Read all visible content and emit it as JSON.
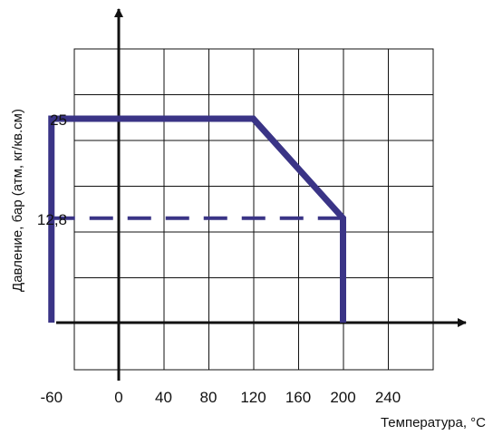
{
  "chart_data": {
    "type": "line",
    "xlabel": "Температура, °C",
    "ylabel": "Давление, бар (атм, кг/кв.см)",
    "x_ticks": [
      -60,
      0,
      40,
      80,
      120,
      160,
      200,
      240
    ],
    "x_tick_labels": [
      "-60",
      "0",
      "40",
      "80",
      "120",
      "160",
      "200",
      "240"
    ],
    "y_ticks": [
      25,
      12.8
    ],
    "y_tick_labels": [
      "25",
      "12,8"
    ],
    "xlim": [
      -100,
      320
    ],
    "ylim": [
      -5,
      33
    ],
    "grid": true,
    "series": [
      {
        "style": "solid",
        "color": "#3a3486",
        "points": [
          [
            -60,
            0
          ],
          [
            -60,
            25
          ],
          [
            120,
            25
          ],
          [
            200,
            12.8
          ],
          [
            200,
            0
          ]
        ]
      },
      {
        "style": "dashed",
        "color": "#3a3486",
        "points": [
          [
            -60,
            12.8
          ],
          [
            200,
            12.8
          ]
        ]
      }
    ]
  }
}
